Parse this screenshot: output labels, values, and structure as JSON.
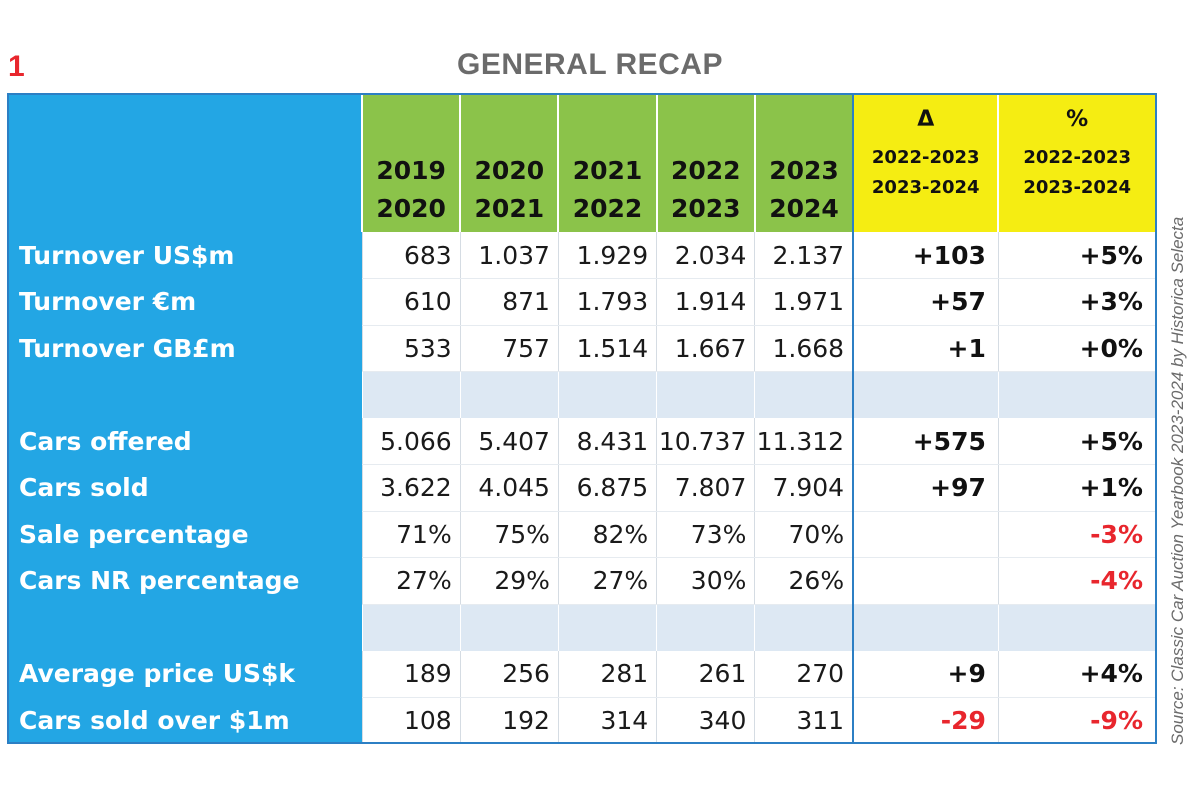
{
  "figure_number": "1",
  "title": "GENERAL RECAP",
  "source": "Source: Classic Car Auction Yearbook 2023-2024 by Historica Selecta",
  "colors": {
    "label_column": "#23a6e4",
    "year_header": "#8bc34a",
    "change_header": "#f5ed12",
    "negative": "#e8262d",
    "border": "#2c7fc4",
    "spacer": "#dde8f3"
  },
  "header": {
    "years": [
      {
        "line1": "2019",
        "line2": "2020"
      },
      {
        "line1": "2020",
        "line2": "2021"
      },
      {
        "line1": "2021",
        "line2": "2022"
      },
      {
        "line1": "2022",
        "line2": "2023"
      },
      {
        "line1": "2023",
        "line2": "2024"
      }
    ],
    "delta": {
      "symbol": "Δ",
      "line1": "2022-2023",
      "line2": "2023-2024"
    },
    "percent": {
      "symbol": "%",
      "line1": "2022-2023",
      "line2": "2023-2024"
    }
  },
  "rows": [
    {
      "label": "Turnover US$m",
      "values": [
        "683",
        "1.037",
        "1.929",
        "2.034",
        "2.137"
      ],
      "delta": "+103",
      "delta_negative": false,
      "pct": "+5%",
      "pct_negative": false
    },
    {
      "label": "Turnover €m",
      "values": [
        "610",
        "871",
        "1.793",
        "1.914",
        "1.971"
      ],
      "delta": "+57",
      "delta_negative": false,
      "pct": "+3%",
      "pct_negative": false
    },
    {
      "label": "Turnover GB£m",
      "values": [
        "533",
        "757",
        "1.514",
        "1.667",
        "1.668"
      ],
      "delta": "+1",
      "delta_negative": false,
      "pct": "+0%",
      "pct_negative": false
    },
    {
      "spacer": true
    },
    {
      "label": "Cars offered",
      "values": [
        "5.066",
        "5.407",
        "8.431",
        "10.737",
        "11.312"
      ],
      "delta": "+575",
      "delta_negative": false,
      "pct": "+5%",
      "pct_negative": false
    },
    {
      "label": "Cars sold",
      "values": [
        "3.622",
        "4.045",
        "6.875",
        "7.807",
        "7.904"
      ],
      "delta": "+97",
      "delta_negative": false,
      "pct": "+1%",
      "pct_negative": false
    },
    {
      "label": "Sale percentage",
      "values": [
        "71%",
        "75%",
        "82%",
        "73%",
        "70%"
      ],
      "delta": "",
      "delta_negative": false,
      "pct": "-3%",
      "pct_negative": true
    },
    {
      "label": "Cars NR percentage",
      "values": [
        "27%",
        "29%",
        "27%",
        "30%",
        "26%"
      ],
      "delta": "",
      "delta_negative": false,
      "pct": "-4%",
      "pct_negative": true
    },
    {
      "spacer": true
    },
    {
      "label": "Average price US$k",
      "values": [
        "189",
        "256",
        "281",
        "261",
        "270"
      ],
      "delta": "+9",
      "delta_negative": false,
      "pct": "+4%",
      "pct_negative": false
    },
    {
      "label": "Cars sold over $1m",
      "values": [
        "108",
        "192",
        "314",
        "340",
        "311"
      ],
      "delta": "-29",
      "delta_negative": true,
      "pct": "-9%",
      "pct_negative": true
    }
  ]
}
